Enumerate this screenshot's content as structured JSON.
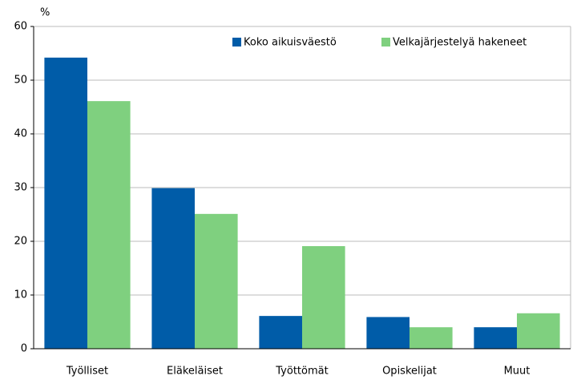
{
  "chart_data": {
    "type": "bar",
    "y_axis_label": "%",
    "categories": [
      "Työlliset",
      "Eläkeläiset",
      "Työttömät",
      "Opiskelijat",
      "Muut"
    ],
    "series": [
      {
        "name": "Koko aikuisväestö",
        "color": "#005ca8",
        "values": [
          54.2,
          29.9,
          6.1,
          5.9,
          4.0
        ]
      },
      {
        "name": "Velkajärjestelyä hakeneet",
        "color": "#7fd07f",
        "values": [
          46.1,
          25.1,
          19.1,
          4.0,
          6.6
        ]
      }
    ],
    "ylim": [
      0,
      60
    ],
    "yticks": [
      0,
      10,
      20,
      30,
      40,
      50,
      60
    ],
    "grid": true,
    "legend": "top-right"
  }
}
